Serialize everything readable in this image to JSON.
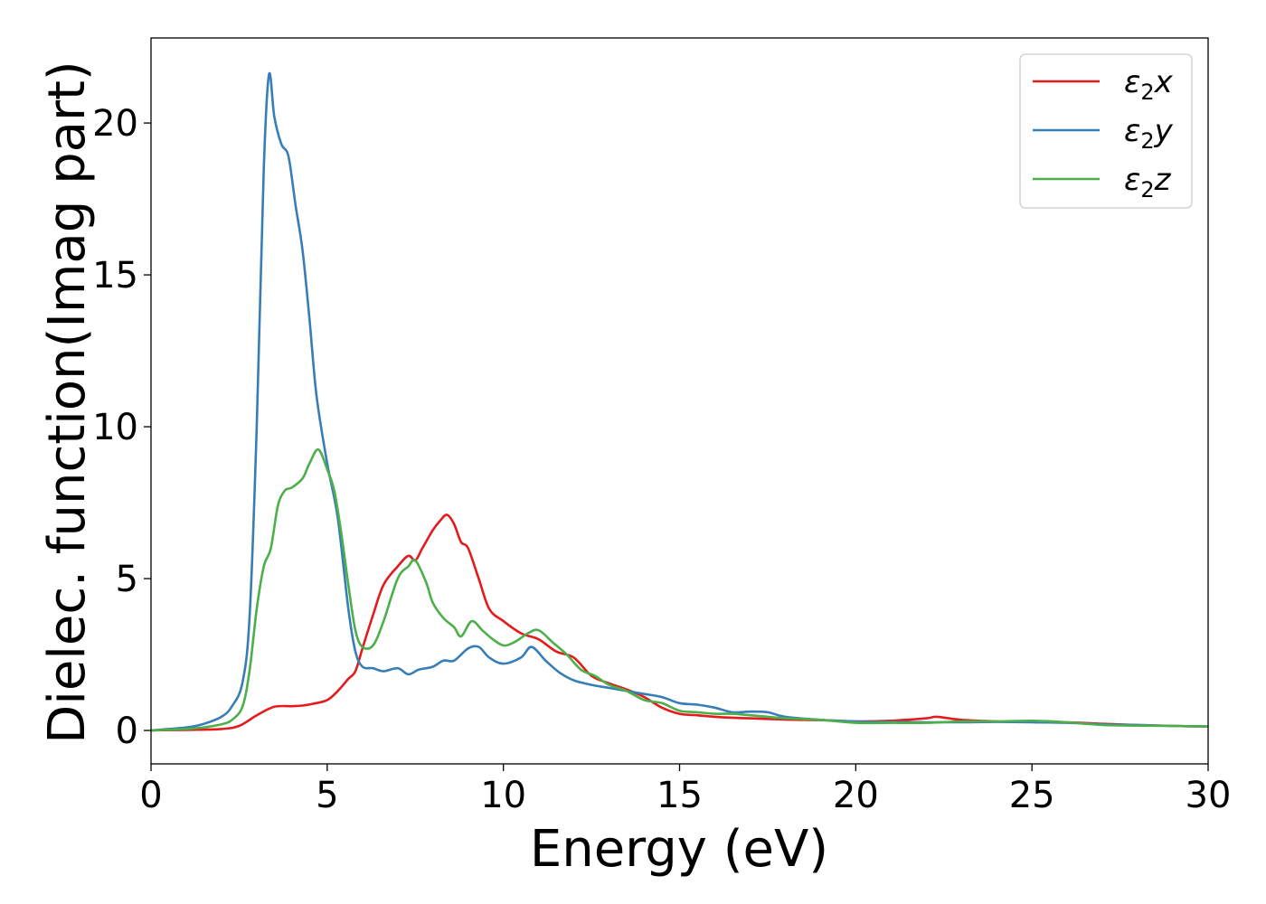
{
  "chart_data": {
    "type": "line",
    "title": "",
    "xlabel": "Energy (eV)",
    "ylabel": "Dielec. function(Imag part)",
    "xlim": [
      0,
      30
    ],
    "ylim": [
      -1.1,
      22.8
    ],
    "xticks": [
      0,
      5,
      10,
      15,
      20,
      25,
      30
    ],
    "yticks": [
      0,
      5,
      10,
      15,
      20
    ],
    "grid": false,
    "legend_position": "top-right",
    "series": [
      {
        "name": "ε₂x",
        "legend_base": "ε",
        "legend_sub": "2",
        "legend_var": "x",
        "color": "#e41a1c",
        "x": [
          0,
          1,
          2,
          2.5,
          3,
          3.5,
          4,
          4.3,
          4.6,
          5,
          5.3,
          5.6,
          5.8,
          6,
          6.3,
          6.6,
          7,
          7.3,
          7.5,
          7.7,
          8,
          8.2,
          8.4,
          8.6,
          8.8,
          9,
          9.3,
          9.6,
          10,
          10.5,
          11,
          11.5,
          12,
          12.5,
          13,
          13.5,
          14,
          14.5,
          15,
          15.5,
          16,
          16.5,
          17,
          17.5,
          18,
          19,
          20,
          21,
          22,
          22.3,
          23,
          24,
          25,
          26,
          27,
          28,
          29,
          30
        ],
        "values": [
          0,
          0.02,
          0.05,
          0.15,
          0.5,
          0.78,
          0.8,
          0.82,
          0.88,
          1.0,
          1.3,
          1.7,
          1.95,
          2.7,
          3.8,
          4.8,
          5.4,
          5.75,
          5.6,
          6.0,
          6.6,
          6.9,
          7.1,
          6.8,
          6.2,
          6.0,
          5.0,
          4.0,
          3.6,
          3.2,
          3.0,
          2.6,
          2.4,
          1.8,
          1.55,
          1.35,
          1.1,
          0.75,
          0.55,
          0.5,
          0.45,
          0.42,
          0.4,
          0.38,
          0.36,
          0.34,
          0.3,
          0.32,
          0.4,
          0.45,
          0.35,
          0.3,
          0.28,
          0.27,
          0.22,
          0.18,
          0.15,
          0.13
        ]
      },
      {
        "name": "ε₂y",
        "legend_base": "ε",
        "legend_sub": "2",
        "legend_var": "y",
        "color": "#377eb8",
        "x": [
          0,
          1,
          1.5,
          2,
          2.3,
          2.6,
          2.8,
          3.0,
          3.2,
          3.35,
          3.5,
          3.7,
          3.9,
          4.1,
          4.3,
          4.5,
          4.7,
          5,
          5.3,
          5.6,
          5.8,
          6,
          6.3,
          6.6,
          7,
          7.3,
          7.6,
          8,
          8.3,
          8.6,
          9,
          9.3,
          9.6,
          10,
          10.5,
          10.8,
          11.2,
          11.6,
          12,
          12.5,
          13,
          13.5,
          14,
          14.5,
          15,
          15.5,
          16,
          16.5,
          17,
          17.5,
          18,
          19,
          20,
          21,
          22,
          23,
          24,
          25,
          26,
          27,
          28,
          29,
          30
        ],
        "values": [
          0,
          0.1,
          0.22,
          0.45,
          0.8,
          1.6,
          3.8,
          10.0,
          18.5,
          21.6,
          20.2,
          19.3,
          18.9,
          17.3,
          15.8,
          13.5,
          11.0,
          8.8,
          7.0,
          4.0,
          2.6,
          2.1,
          2.05,
          1.95,
          2.05,
          1.85,
          2.0,
          2.1,
          2.3,
          2.3,
          2.7,
          2.75,
          2.4,
          2.2,
          2.4,
          2.75,
          2.3,
          1.9,
          1.65,
          1.5,
          1.4,
          1.3,
          1.2,
          1.1,
          0.9,
          0.85,
          0.75,
          0.6,
          0.62,
          0.6,
          0.45,
          0.35,
          0.3,
          0.28,
          0.27,
          0.27,
          0.28,
          0.27,
          0.25,
          0.2,
          0.18,
          0.15,
          0.13
        ]
      },
      {
        "name": "ε₂z",
        "legend_base": "ε",
        "legend_sub": "2",
        "legend_var": "z",
        "color": "#4daf4a",
        "x": [
          0,
          1,
          1.5,
          2,
          2.3,
          2.6,
          2.8,
          3.0,
          3.2,
          3.4,
          3.6,
          3.8,
          4.0,
          4.3,
          4.5,
          4.75,
          5.0,
          5.2,
          5.4,
          5.6,
          5.8,
          6,
          6.3,
          6.6,
          7,
          7.3,
          7.5,
          7.8,
          8,
          8.3,
          8.6,
          8.8,
          9.1,
          9.4,
          9.7,
          10,
          10.3,
          10.7,
          11,
          11.4,
          11.8,
          12.2,
          12.6,
          13,
          13.5,
          14,
          14.5,
          15,
          15.5,
          16,
          16.5,
          17,
          17.5,
          18,
          19,
          20,
          21,
          22,
          23,
          24,
          25,
          26,
          27,
          28,
          29,
          30
        ],
        "values": [
          0,
          0.05,
          0.1,
          0.2,
          0.35,
          0.8,
          2.0,
          4.0,
          5.4,
          6.0,
          7.4,
          7.9,
          8.0,
          8.3,
          8.8,
          9.25,
          8.6,
          7.9,
          6.5,
          4.8,
          3.3,
          2.75,
          2.8,
          3.6,
          5.0,
          5.4,
          5.6,
          4.9,
          4.2,
          3.7,
          3.4,
          3.1,
          3.6,
          3.3,
          3.0,
          2.8,
          2.9,
          3.2,
          3.3,
          2.9,
          2.5,
          2.0,
          1.8,
          1.5,
          1.3,
          1.0,
          0.9,
          0.65,
          0.6,
          0.55,
          0.55,
          0.5,
          0.45,
          0.4,
          0.35,
          0.25,
          0.25,
          0.25,
          0.3,
          0.3,
          0.32,
          0.27,
          0.18,
          0.16,
          0.15,
          0.13
        ]
      }
    ]
  }
}
